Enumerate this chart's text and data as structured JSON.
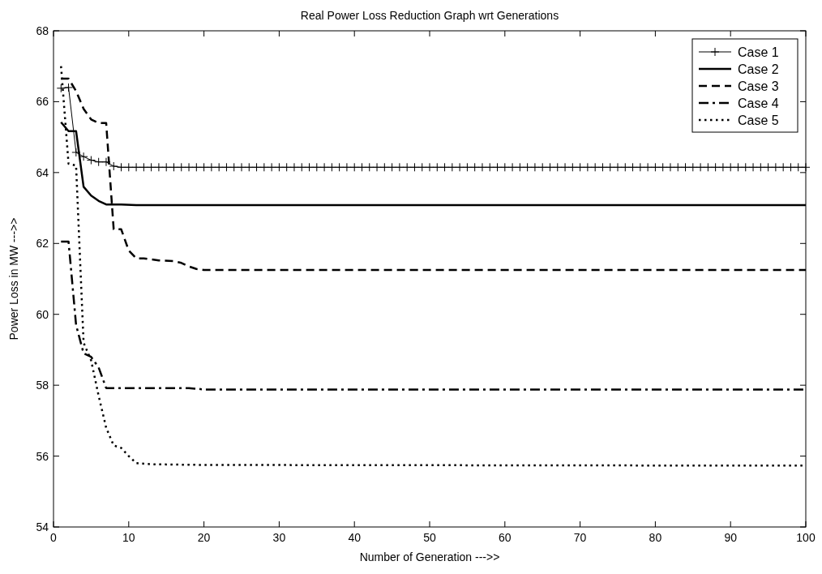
{
  "chart_data": {
    "type": "line",
    "title": "Real Power Loss Reduction Graph wrt Generations",
    "xlabel": "Number of Generation --->>",
    "ylabel": "Power Loss in MW --->>",
    "xlim": [
      0,
      100
    ],
    "ylim": [
      54,
      68
    ],
    "xticks": [
      0,
      10,
      20,
      30,
      40,
      50,
      60,
      70,
      80,
      90,
      100
    ],
    "yticks": [
      54,
      56,
      58,
      60,
      62,
      64,
      66,
      68
    ],
    "grid": false,
    "legend": "top right",
    "series": [
      {
        "name": "Case 1",
        "color": "#000000",
        "line_style": "solid",
        "marker": "cross",
        "x": [
          1,
          2,
          3,
          4,
          5,
          6,
          7,
          8,
          9,
          10,
          11,
          12,
          13,
          14,
          15,
          16,
          17,
          18,
          19,
          20,
          21,
          22,
          23,
          24,
          25,
          26,
          27,
          28,
          29,
          30,
          31,
          32,
          33,
          34,
          35,
          36,
          37,
          38,
          39,
          40,
          41,
          42,
          43,
          44,
          45,
          46,
          47,
          48,
          49,
          50,
          51,
          52,
          53,
          54,
          55,
          56,
          57,
          58,
          59,
          60,
          61,
          62,
          63,
          64,
          65,
          66,
          67,
          68,
          69,
          70,
          71,
          72,
          73,
          74,
          75,
          76,
          77,
          78,
          79,
          80,
          81,
          82,
          83,
          84,
          85,
          86,
          87,
          88,
          89,
          90,
          91,
          92,
          93,
          94,
          95,
          96,
          97,
          98,
          99,
          100
        ],
        "values": [
          66.38,
          66.4,
          64.57,
          64.45,
          64.35,
          64.3,
          64.3,
          64.18,
          64.15,
          64.15,
          64.15,
          64.15,
          64.15,
          64.15,
          64.15,
          64.15,
          64.15,
          64.15,
          64.15,
          64.15,
          64.15,
          64.15,
          64.15,
          64.15,
          64.15,
          64.15,
          64.15,
          64.15,
          64.15,
          64.15,
          64.15,
          64.15,
          64.15,
          64.15,
          64.15,
          64.15,
          64.15,
          64.15,
          64.15,
          64.15,
          64.15,
          64.15,
          64.15,
          64.15,
          64.15,
          64.15,
          64.15,
          64.15,
          64.15,
          64.15,
          64.15,
          64.15,
          64.15,
          64.15,
          64.15,
          64.15,
          64.15,
          64.15,
          64.15,
          64.15,
          64.15,
          64.15,
          64.15,
          64.15,
          64.15,
          64.15,
          64.15,
          64.15,
          64.15,
          64.15,
          64.15,
          64.15,
          64.15,
          64.15,
          64.15,
          64.15,
          64.15,
          64.15,
          64.15,
          64.15,
          64.15,
          64.15,
          64.15,
          64.15,
          64.15,
          64.15,
          64.15,
          64.15,
          64.15,
          64.15,
          64.15,
          64.15,
          64.15,
          64.15,
          64.15,
          64.15,
          64.15,
          64.15,
          64.15,
          64.15
        ]
      },
      {
        "name": "Case 2",
        "color": "#000000",
        "line_style": "solid",
        "marker": "none",
        "x": [
          1,
          2,
          3,
          4,
          5,
          6,
          7,
          9,
          11,
          100
        ],
        "values": [
          65.42,
          65.17,
          65.17,
          63.6,
          63.35,
          63.2,
          63.1,
          63.1,
          63.08,
          63.08
        ]
      },
      {
        "name": "Case 3",
        "color": "#000000",
        "line_style": "dashed",
        "marker": "none",
        "x": [
          1,
          2,
          3,
          4,
          5,
          6,
          7,
          8,
          9,
          10,
          11,
          12,
          14,
          16,
          17,
          18,
          19,
          20,
          100
        ],
        "values": [
          66.65,
          66.65,
          66.3,
          65.8,
          65.5,
          65.4,
          65.4,
          62.4,
          62.4,
          61.8,
          61.58,
          61.58,
          61.52,
          61.5,
          61.45,
          61.35,
          61.28,
          61.25,
          61.25
        ]
      },
      {
        "name": "Case 4",
        "color": "#000000",
        "line_style": "dashdot",
        "marker": "none",
        "x": [
          1,
          2,
          3,
          4,
          5,
          6,
          7,
          18,
          20,
          100
        ],
        "values": [
          62.05,
          62.05,
          59.7,
          58.9,
          58.8,
          58.5,
          57.92,
          57.92,
          57.88,
          57.88
        ]
      },
      {
        "name": "Case 5",
        "color": "#000000",
        "line_style": "dotted",
        "marker": "none",
        "x": [
          1,
          2,
          3,
          4,
          5,
          6,
          7,
          8,
          9,
          10,
          11,
          13,
          20,
          100
        ],
        "values": [
          67.0,
          64.25,
          64.2,
          59.2,
          58.7,
          57.7,
          56.8,
          56.3,
          56.23,
          56.0,
          55.8,
          55.77,
          55.75,
          55.73
        ]
      }
    ]
  }
}
